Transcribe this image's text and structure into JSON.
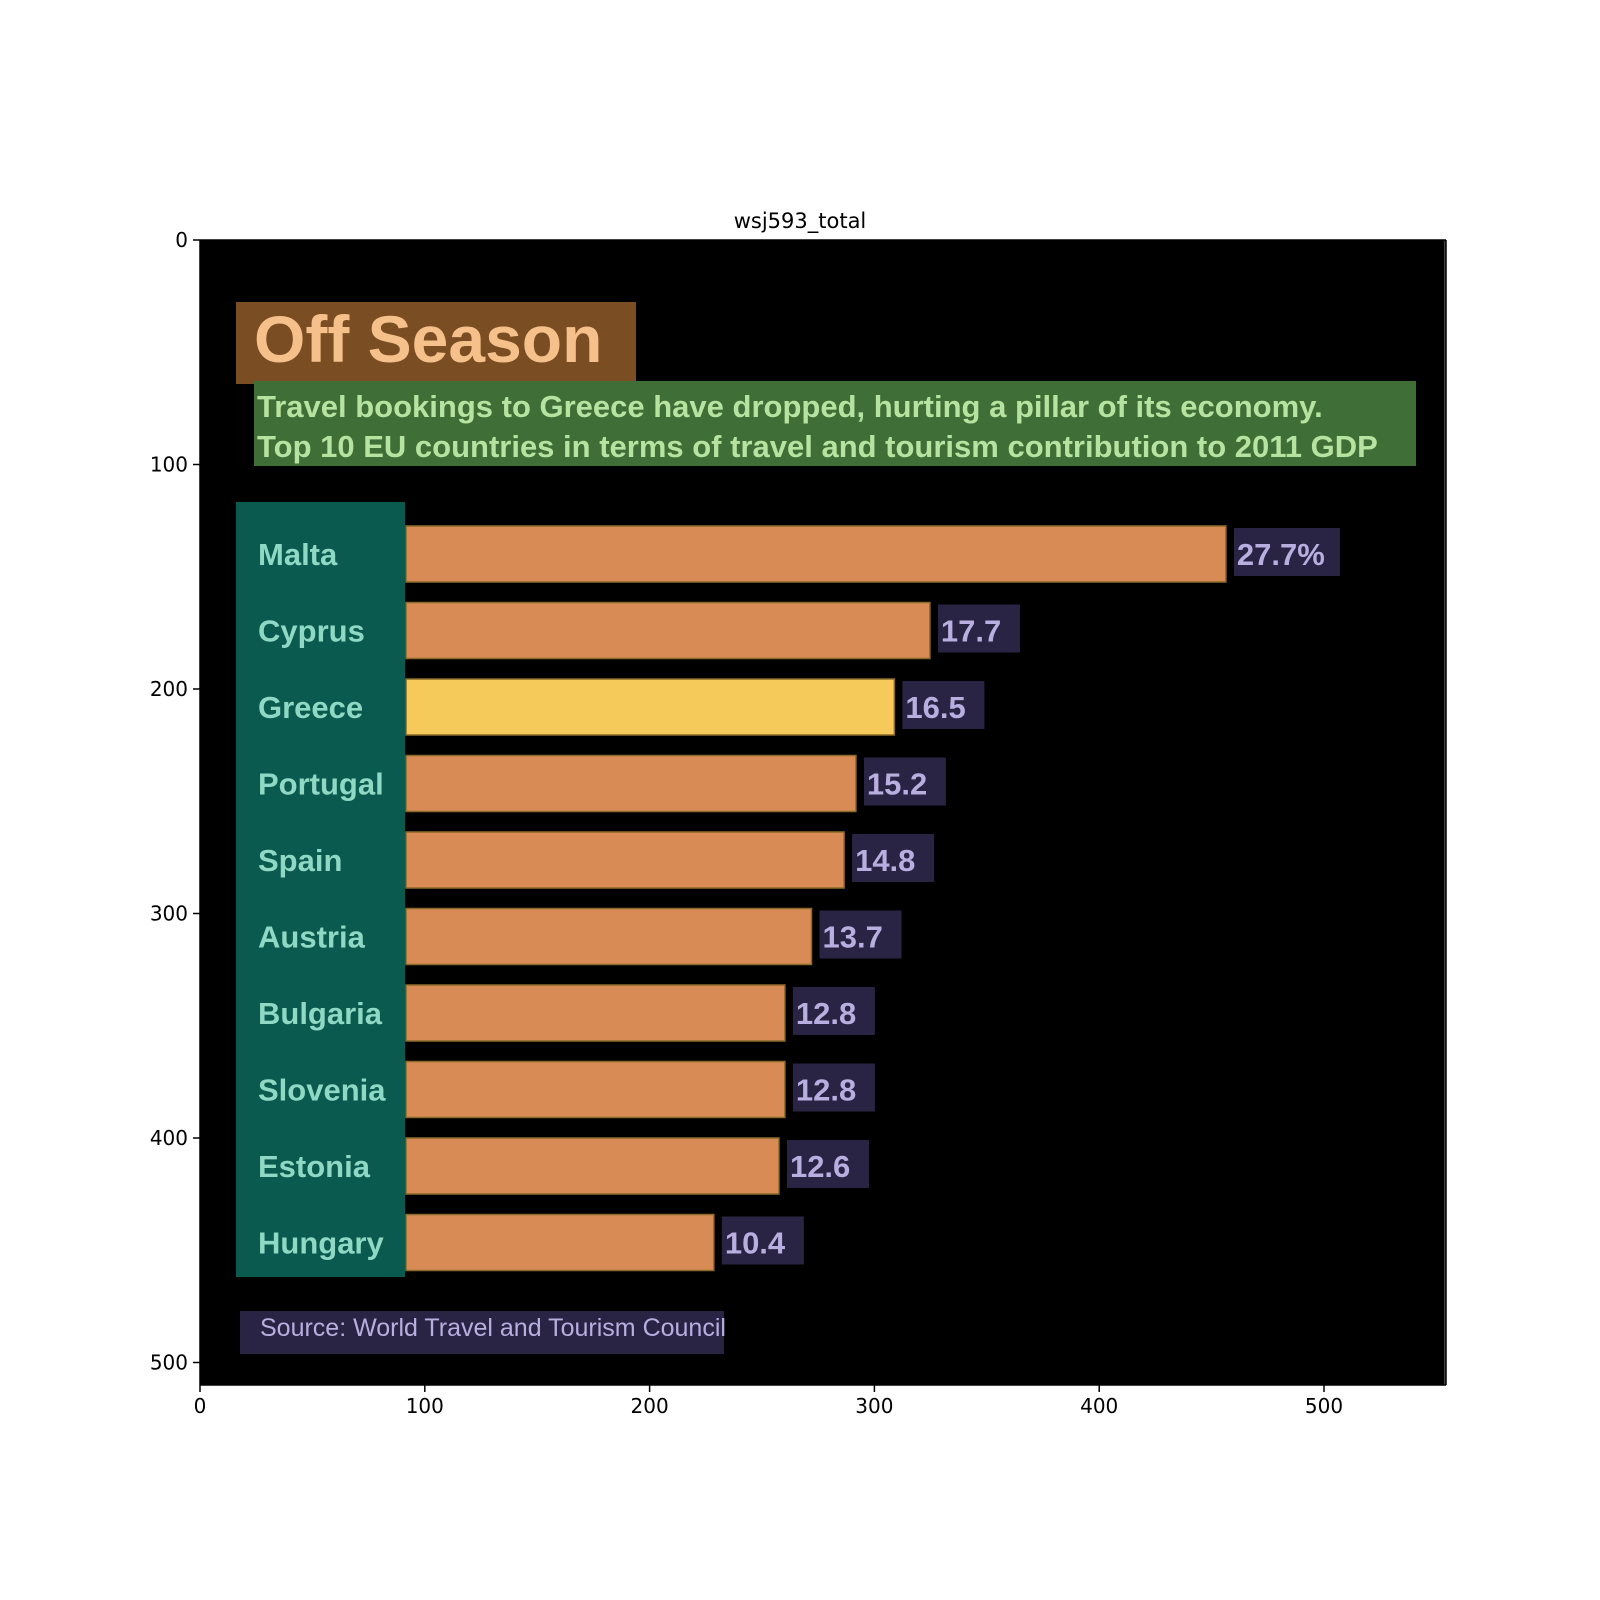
{
  "figure": {
    "title": "wsj593_total"
  },
  "axes": {
    "x_ticks": [
      0,
      100,
      200,
      300,
      400,
      500
    ],
    "y_ticks": [
      0,
      100,
      200,
      300,
      400,
      500
    ]
  },
  "chart_data": {
    "type": "bar",
    "orientation": "horizontal",
    "title": "Off Season",
    "subtitle_lines": [
      "Travel bookings to Greece have dropped, hurting a pillar of its economy.",
      "Top 10 EU countries in terms of travel and tourism contribution to 2011 GDP"
    ],
    "categories": [
      "Malta",
      "Cyprus",
      "Greece",
      "Portugal",
      "Spain",
      "Austria",
      "Bulgaria",
      "Slovenia",
      "Estonia",
      "Hungary"
    ],
    "values": [
      27.7,
      17.7,
      16.5,
      15.2,
      14.8,
      13.7,
      12.8,
      12.8,
      12.6,
      10.4
    ],
    "value_labels": [
      "27.7%",
      "17.7",
      "16.5",
      "15.2",
      "14.8",
      "13.7",
      "12.8",
      "12.8",
      "12.6",
      "10.4"
    ],
    "highlight": "Greece",
    "source": "Source: World Travel and Tourism Council",
    "colors": {
      "bar": "#d98b56",
      "highlight_bar": "#f5c95a",
      "background": "#000000"
    }
  }
}
